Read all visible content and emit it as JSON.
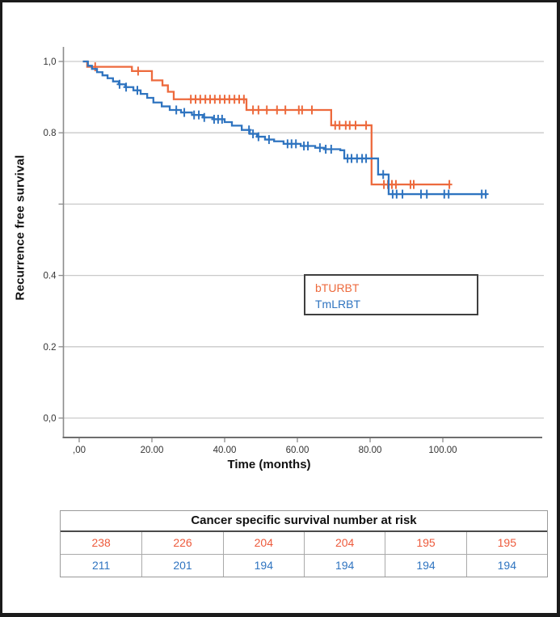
{
  "colors": {
    "bturbt_orange": "#ED6A3D",
    "tmlrbt_blue": "#2F74C0",
    "grid": "#C9C9C9",
    "axis": "#8C8C8C",
    "tick_text": "#333333",
    "frame": "#1B1B1B"
  },
  "legend": {
    "items": [
      {
        "label": "bTURBT",
        "color": "#ED6A3D"
      },
      {
        "label": "TmLRBT",
        "color": "#2F74C0"
      }
    ]
  },
  "risk_table": {
    "title": "Cancer specific survival number at risk",
    "rows": [
      {
        "series": "bTURBT",
        "color": "#ED5A3C",
        "values": [
          "238",
          "226",
          "204",
          "204",
          "195",
          "195"
        ]
      },
      {
        "series": "TmLRBT",
        "color": "#2F74C0",
        "values": [
          "211",
          "201",
          "194",
          "194",
          "194",
          "194"
        ]
      }
    ]
  },
  "chart_data": {
    "type": "line",
    "subtype": "kaplan-meier-step",
    "title": "",
    "xlabel": "Time (months)",
    "ylabel": "Recurrence free survival",
    "xlim": [
      -4.5,
      127.5
    ],
    "ylim": [
      0.0,
      1.05
    ],
    "grid": true,
    "legend_position": "center-right-box",
    "x_ticks": [
      {
        "value": 0,
        "label": ",00"
      },
      {
        "value": 20,
        "label": "20.00"
      },
      {
        "value": 40,
        "label": "40.00"
      },
      {
        "value": 60,
        "label": "60.00"
      },
      {
        "value": 80,
        "label": "80.00"
      },
      {
        "value": 100,
        "label": "100.00"
      }
    ],
    "y_ticks": [
      {
        "value": 1.0,
        "label": "1,0"
      },
      {
        "value": 0.8,
        "label": "0.8"
      },
      {
        "value": 0.6,
        "label": ""
      },
      {
        "value": 0.4,
        "label": "0.4"
      },
      {
        "value": 0.2,
        "label": "0.2"
      },
      {
        "value": 0.0,
        "label": "0,0"
      }
    ],
    "series": [
      {
        "name": "bTURBT",
        "color": "#ED6A3D",
        "start_month": 1.0,
        "end_month": 101.8,
        "steps": [
          [
            2.2,
            0.985
          ],
          [
            14.5,
            0.973
          ],
          [
            20.0,
            0.947
          ],
          [
            22.9,
            0.933
          ],
          [
            24.4,
            0.915
          ],
          [
            26.0,
            0.894
          ],
          [
            46.0,
            0.864
          ],
          [
            69.3,
            0.821
          ],
          [
            80.4,
            0.655
          ]
        ],
        "censor_months": [
          4.4,
          16.2,
          30.7,
          32.0,
          33.3,
          34.7,
          36.0,
          37.3,
          38.7,
          40.0,
          41.3,
          42.7,
          44.0,
          45.3,
          47.8,
          49.3,
          51.6,
          54.4,
          56.7,
          60.4,
          61.3,
          64.0,
          70.4,
          71.6,
          73.3,
          74.4,
          76.0,
          78.9,
          83.8,
          84.9,
          86.0,
          87.1,
          91.1,
          92.0,
          101.8
        ]
      },
      {
        "name": "TmLRBT",
        "color": "#2F74C0",
        "start_month": 1.0,
        "end_month": 112.2,
        "steps": [
          [
            2.4,
            0.988
          ],
          [
            3.5,
            0.979
          ],
          [
            4.9,
            0.97
          ],
          [
            6.4,
            0.961
          ],
          [
            7.8,
            0.953
          ],
          [
            9.3,
            0.944
          ],
          [
            10.9,
            0.936
          ],
          [
            12.7,
            0.928
          ],
          [
            14.9,
            0.919
          ],
          [
            16.9,
            0.909
          ],
          [
            18.7,
            0.898
          ],
          [
            20.4,
            0.885
          ],
          [
            22.7,
            0.874
          ],
          [
            24.9,
            0.864
          ],
          [
            28.0,
            0.857
          ],
          [
            31.0,
            0.85
          ],
          [
            34.0,
            0.843
          ],
          [
            37.0,
            0.838
          ],
          [
            40.0,
            0.83
          ],
          [
            42.0,
            0.82
          ],
          [
            44.7,
            0.808
          ],
          [
            46.9,
            0.797
          ],
          [
            48.9,
            0.789
          ],
          [
            51.1,
            0.781
          ],
          [
            53.6,
            0.776
          ],
          [
            56.2,
            0.769
          ],
          [
            60.9,
            0.763
          ],
          [
            64.9,
            0.758
          ],
          [
            67.3,
            0.754
          ],
          [
            71.8,
            0.751
          ],
          [
            72.9,
            0.728
          ],
          [
            82.2,
            0.683
          ],
          [
            85.1,
            0.628
          ]
        ],
        "censor_months": [
          11.1,
          12.9,
          16.0,
          26.7,
          28.9,
          31.6,
          32.9,
          34.4,
          37.1,
          38.2,
          39.3,
          46.7,
          47.8,
          49.3,
          52.2,
          57.3,
          58.4,
          59.6,
          61.8,
          62.9,
          66.2,
          67.8,
          69.3,
          73.8,
          74.9,
          76.4,
          77.8,
          78.9,
          83.6,
          86.2,
          87.3,
          88.9,
          94.0,
          95.6,
          100.4,
          101.6,
          110.7,
          111.8
        ]
      }
    ]
  }
}
